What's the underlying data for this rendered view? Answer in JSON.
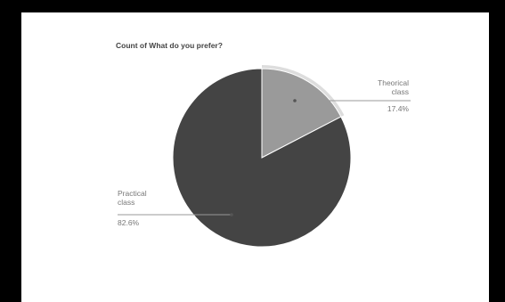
{
  "chart_data": {
    "type": "pie",
    "title": "Count of What do you prefer?",
    "slices": [
      {
        "label_lines": [
          "Theorical",
          "class"
        ],
        "value": 17.4,
        "percent_label": "17.4%",
        "color": "#9a9a9a"
      },
      {
        "label_lines": [
          "Practical",
          "class"
        ],
        "value": 82.6,
        "percent_label": "82.6%",
        "color": "#444444"
      }
    ],
    "legend": "none"
  }
}
